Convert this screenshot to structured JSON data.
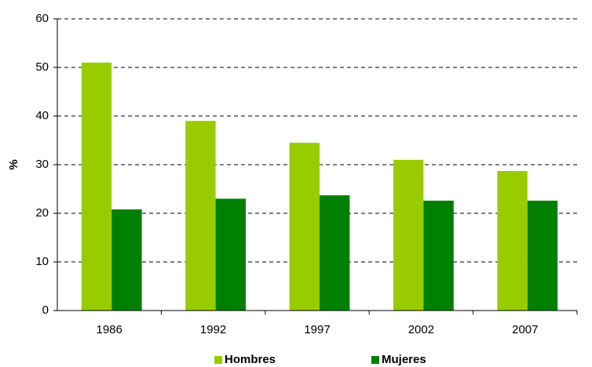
{
  "chart_data": {
    "type": "bar",
    "y_label": "%",
    "categories": [
      "1986",
      "1992",
      "1997",
      "2002",
      "2007"
    ],
    "series": [
      {
        "name": "Hombres",
        "color": "#99cc00",
        "values": [
          51,
          39,
          34.5,
          31,
          28.7
        ]
      },
      {
        "name": "Mujeres",
        "color": "#008000",
        "values": [
          20.8,
          23,
          23.7,
          22.6,
          22.6
        ]
      }
    ],
    "ylim": [
      0,
      60
    ],
    "yticks": [
      0,
      10,
      20,
      30,
      40,
      50,
      60
    ],
    "grid": true,
    "legend": "bottom"
  }
}
